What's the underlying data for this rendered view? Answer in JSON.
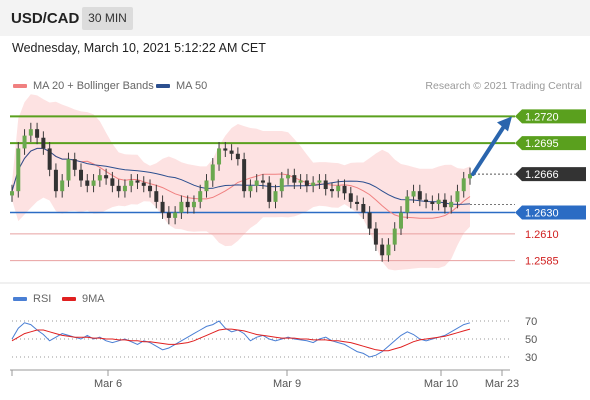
{
  "header": {
    "symbol": "USD/CAD",
    "timeframe": "30 MIN"
  },
  "datetime": "Wednesday, March 10, 2021 5:12:22 AM CET",
  "credit": "Research © 2021 Trading Central",
  "colors": {
    "resistance": "#5aa01e",
    "pivot": "#2b6cc4",
    "support": "#e8a0a0",
    "support_text": "#d02020",
    "price_tag": "#333333",
    "arrow": "#2a65ad",
    "bollinger_fill": "#fde2e2",
    "ma20": "#f08080",
    "ma50": "#2c4f8f",
    "rsi": "#4a7fd4",
    "rsi_ma": "#e02020"
  },
  "chart_data": [
    {
      "type": "candlestick",
      "legend": [
        {
          "name": "MA 20 + Bollinger Bands",
          "color": "#f08080"
        },
        {
          "name": "MA 50",
          "color": "#2c4f8f"
        }
      ],
      "ylim": [
        1.2565,
        1.274
      ],
      "x_tick_labels": [
        "Mar 6",
        "Mar 9",
        "Mar 10",
        "Mar 23"
      ],
      "levels": [
        {
          "label": "1.2720",
          "value": 1.272,
          "kind": "resistance"
        },
        {
          "label": "1.2695",
          "value": 1.2695,
          "kind": "resistance"
        },
        {
          "label": "1.2666",
          "value": 1.2666,
          "kind": "last"
        },
        {
          "label": "1.2630",
          "value": 1.263,
          "kind": "pivot"
        },
        {
          "label": "1.2610",
          "value": 1.261,
          "kind": "support"
        },
        {
          "label": "1.2585",
          "value": 1.2585,
          "kind": "support"
        }
      ],
      "forecast_arrow": {
        "from": 1.2666,
        "to": 1.272,
        "direction": "up"
      },
      "close": [
        1.265,
        1.269,
        1.2702,
        1.2708,
        1.27,
        1.269,
        1.267,
        1.265,
        1.266,
        1.268,
        1.267,
        1.266,
        1.2655,
        1.266,
        1.2665,
        1.2662,
        1.2655,
        1.265,
        1.2655,
        1.266,
        1.2658,
        1.2655,
        1.265,
        1.264,
        1.263,
        1.2625,
        1.263,
        1.264,
        1.2635,
        1.264,
        1.265,
        1.266,
        1.2675,
        1.269,
        1.2688,
        1.2685,
        1.268,
        1.265,
        1.2655,
        1.266,
        1.2658,
        1.264,
        1.265,
        1.2662,
        1.2665,
        1.2658,
        1.266,
        1.2655,
        1.2658,
        1.266,
        1.2652,
        1.265,
        1.2655,
        1.2648,
        1.264,
        1.2638,
        1.263,
        1.2615,
        1.26,
        1.259,
        1.26,
        1.2615,
        1.263,
        1.2645,
        1.265,
        1.2642,
        1.264,
        1.2638,
        1.2642,
        1.2635,
        1.264,
        1.265,
        1.2662,
        1.2666
      ],
      "rsi": {
        "legend": [
          {
            "name": "RSI",
            "color": "#4a7fd4"
          },
          {
            "name": "9MA",
            "color": "#e02020"
          }
        ],
        "ylim": [
          20,
          80
        ],
        "levels": [
          70,
          50,
          30
        ],
        "rsi_values": [
          50,
          62,
          68,
          66,
          60,
          55,
          48,
          52,
          56,
          54,
          52,
          50,
          54,
          50,
          52,
          48,
          46,
          48,
          50,
          47,
          44,
          48,
          46,
          42,
          38,
          40,
          44,
          48,
          52,
          56,
          60,
          64,
          66,
          70,
          62,
          58,
          60,
          56,
          48,
          52,
          54,
          50,
          48,
          50,
          52,
          50,
          49,
          48,
          46,
          50,
          52,
          48,
          46,
          44,
          40,
          36,
          34,
          30,
          32,
          36,
          42,
          48,
          54,
          58,
          55,
          50,
          48,
          50,
          52,
          54,
          58,
          62,
          66,
          68
        ],
        "ma_values": [
          48,
          52,
          56,
          58,
          60,
          60,
          58,
          56,
          54,
          53,
          52,
          52,
          52,
          51,
          51,
          50,
          50,
          49,
          49,
          48,
          48,
          47,
          47,
          46,
          45,
          44,
          44,
          45,
          46,
          48,
          51,
          54,
          57,
          60,
          61,
          61,
          60,
          59,
          57,
          55,
          54,
          53,
          52,
          51,
          51,
          51,
          50,
          50,
          49,
          49,
          49,
          48,
          48,
          47,
          46,
          44,
          42,
          40,
          38,
          37,
          37,
          39,
          41,
          44,
          47,
          49,
          50,
          51,
          52,
          53,
          55,
          57,
          59,
          61
        ]
      }
    }
  ]
}
